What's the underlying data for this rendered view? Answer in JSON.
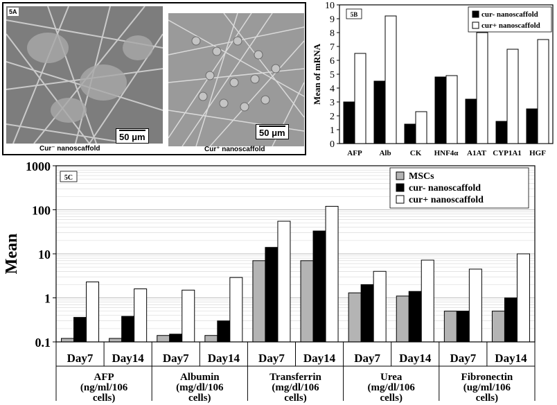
{
  "panel_5a": {
    "label": "5A",
    "left_caption": "Cur⁻ nanoscaffold",
    "right_caption": "Cur⁺ nanoscaffold",
    "scale_bar": "50 μm"
  },
  "chart_data": [
    {
      "id": "5B",
      "label": "5B",
      "type": "bar",
      "title": "",
      "ylabel": "Mean of mRNA",
      "xlabel": "",
      "ylim": [
        0,
        10
      ],
      "yticks": [
        0,
        1,
        2,
        3,
        4,
        5,
        6,
        7,
        8,
        9,
        10
      ],
      "categories": [
        "AFP",
        "Alb",
        "CK",
        "HNF4α",
        "A1AT",
        "CYP1A1",
        "HGF"
      ],
      "series": [
        {
          "name": "cur- nanoscaffold",
          "color": "#000000",
          "values": [
            3.0,
            4.5,
            1.4,
            4.8,
            3.2,
            1.6,
            2.5
          ]
        },
        {
          "name": "cur+ nanoscaffold",
          "color": "#ffffff",
          "values": [
            6.5,
            9.2,
            2.3,
            4.9,
            8.0,
            6.8,
            7.5
          ]
        }
      ],
      "legend_position": "top-right"
    },
    {
      "id": "5C",
      "label": "5C",
      "type": "bar",
      "title": "",
      "ylabel": "Mean",
      "xlabel": "",
      "yscale": "log",
      "ylim": [
        0.1,
        1000
      ],
      "yticks": [
        0.1,
        1,
        10,
        100,
        1000
      ],
      "ytick_labels": [
        "0.1",
        "1",
        "10",
        "100",
        "1000"
      ],
      "categories": [
        "Day7",
        "Day14",
        "Day7",
        "Day14",
        "Day7",
        "Day14",
        "Day7",
        "Day14",
        "Day7",
        "Day14"
      ],
      "groups": [
        {
          "lines": [
            "AFP",
            "(ng/ml/106",
            "cells)"
          ]
        },
        {
          "lines": [
            "Albumin",
            "(mg/dl/106",
            "cells)"
          ]
        },
        {
          "lines": [
            "Transferrin",
            "(mg/dl/106",
            "cells)"
          ]
        },
        {
          "lines": [
            "Urea",
            "(mg/dl/106",
            "cells)"
          ]
        },
        {
          "lines": [
            "Fibronectin",
            "(ug/ml/106",
            "cells)"
          ]
        }
      ],
      "series": [
        {
          "name": "MSCs",
          "color": "#b4b4b4",
          "values": [
            0.12,
            0.12,
            0.14,
            0.14,
            7,
            7,
            1.3,
            1.1,
            0.5,
            0.5
          ]
        },
        {
          "name": "cur- nanoscaffold",
          "color": "#000000",
          "values": [
            0.36,
            0.38,
            0.15,
            0.3,
            14,
            33,
            2.0,
            1.4,
            0.5,
            1.0
          ]
        },
        {
          "name": "cur+ nanoscaffold",
          "color": "#ffffff",
          "values": [
            2.3,
            1.6,
            1.5,
            2.9,
            55,
            120,
            4.0,
            7.2,
            4.5,
            10
          ]
        }
      ],
      "legend_position": "top-right"
    }
  ]
}
